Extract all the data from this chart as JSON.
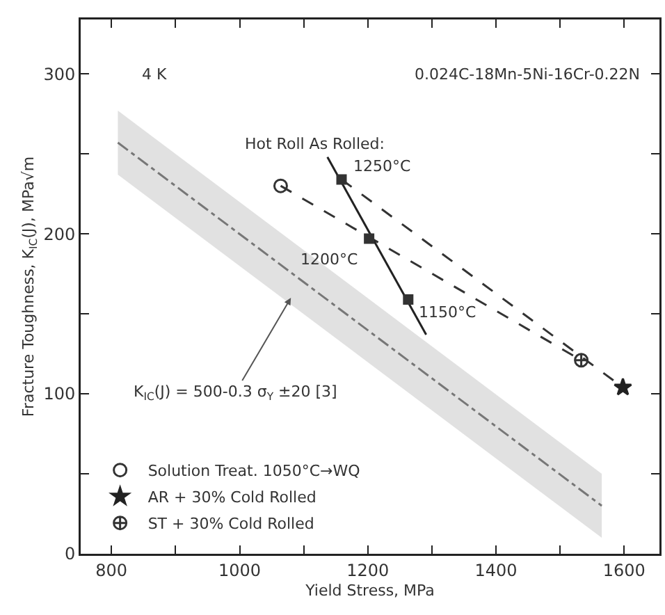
{
  "chart_data": {
    "type": "scatter",
    "xlabel": "Yield Stress, MPa",
    "ylabel": "Fracture Toughness, K$_{IC}$(J), MPa√m",
    "xlim": [
      752,
      1655
    ],
    "ylim": [
      0,
      334
    ],
    "xticks": [
      800,
      {
        "value": 900,
        "label": null
      },
      1000,
      {
        "value": 1100,
        "label": null
      },
      1200,
      {
        "value": 1300,
        "label": null
      },
      1400,
      {
        "value": 1500,
        "label": null
      },
      1600
    ],
    "yticks": [
      0,
      {
        "value": 50,
        "label": null
      },
      100,
      {
        "value": 150,
        "label": null
      },
      200,
      {
        "value": 250,
        "label": null
      },
      300
    ],
    "grid": false,
    "legend": "bottom left",
    "series": [
      {
        "type": "line",
        "color": "#777777",
        "line_style": "dashdot",
        "marker": "none",
        "x": [
          810,
          1565
        ],
        "values": [
          257,
          30
        ],
        "lower": [
          237,
          10
        ],
        "upper": [
          277,
          50
        ]
      },
      {
        "type": "line",
        "color": "#333333",
        "line_style": "dashed",
        "marker": "none",
        "x": [
          1064,
          1533
        ],
        "values": [
          230,
          121
        ]
      },
      {
        "type": "line",
        "color": "#333333",
        "line_style": "dashed",
        "marker": "none",
        "x": [
          1159,
          1598
        ],
        "values": [
          234,
          104
        ]
      },
      {
        "type": "line",
        "color": "#222222",
        "line_style": "solid",
        "marker": "none",
        "x": [
          1137,
          1291
        ],
        "values": [
          248,
          137
        ]
      },
      {
        "color": "#333333",
        "marker": "square",
        "x": [
          1159,
          1202,
          1263
        ],
        "values": [
          234,
          197,
          159
        ]
      },
      {
        "name": "Solution Treat. 1050°C→WQ",
        "color": "#333333",
        "marker": "circle",
        "x": [
          1064
        ],
        "values": [
          230
        ]
      },
      {
        "name": "AR + 30% Cold Rolled",
        "color": "#222222",
        "marker": "star",
        "x": [
          1598
        ],
        "values": [
          104
        ]
      },
      {
        "name": "ST + 30% Cold Rolled",
        "color": "#333333",
        "marker": "cross",
        "x": [
          1533
        ],
        "values": [
          121
        ]
      }
    ],
    "annotations": [
      "4 K",
      "0.024C-18Mn-5Ni-16Cr-0.22N",
      "Hot Roll As Rolled:",
      {
        "text": "1250°C",
        "x": 1159,
        "y": 234
      },
      {
        "text": "1200°C",
        "x": 1202,
        "y": 197
      },
      {
        "text": "1150°C",
        "x": 1263,
        "y": 159
      },
      {
        "text": "K$_{IC}$(J) = 500-0.3 σ$_{Y}$ ±20 [3]",
        "x": 1080,
        "y": 160
      }
    ]
  }
}
